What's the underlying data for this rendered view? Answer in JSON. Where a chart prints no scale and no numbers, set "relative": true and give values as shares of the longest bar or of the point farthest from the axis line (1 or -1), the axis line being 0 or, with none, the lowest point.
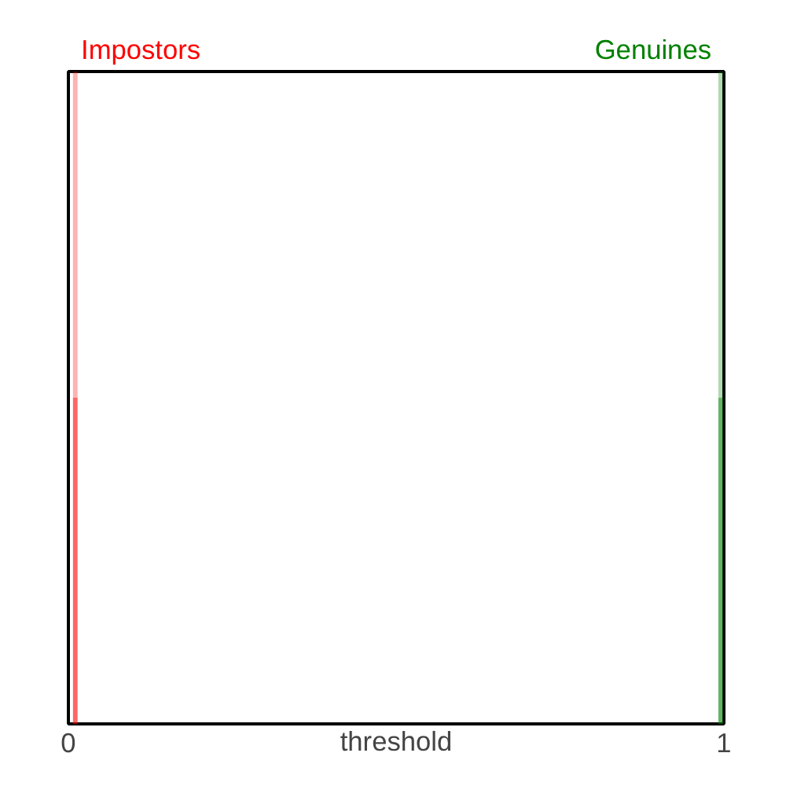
{
  "chart_data": {
    "type": "bar",
    "stacked": true,
    "relative": true,
    "xlabel": "threshold",
    "xlim": [
      0,
      1
    ],
    "xticks": [
      0,
      1
    ],
    "grid": false,
    "x": [
      0.0105,
      0.995
    ],
    "series": [
      {
        "name": "Impostors",
        "color": "#ff0000",
        "values": [
          0.5,
          null
        ]
      },
      {
        "name": "Genuines",
        "color": "#008000",
        "values": [
          null,
          0.5
        ]
      },
      {
        "color": "#ff0000",
        "values": [
          0.5,
          null
        ]
      },
      {
        "color": "#008000",
        "values": [
          null,
          0.5
        ]
      }
    ]
  }
}
